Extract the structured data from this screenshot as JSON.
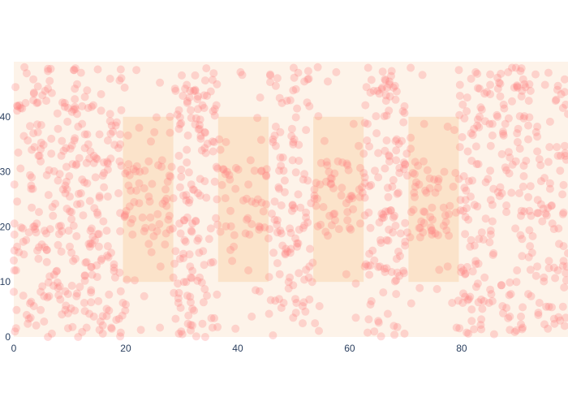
{
  "chart_data": {
    "type": "scatter",
    "title": "",
    "xlabel": "",
    "ylabel": "",
    "xlim": [
      0,
      99
    ],
    "ylim": [
      0,
      50
    ],
    "x_ticks": [
      0,
      20,
      40,
      60,
      80
    ],
    "y_ticks": [
      0,
      10,
      20,
      30,
      40
    ],
    "grid": false,
    "colors": {
      "plot_background": "#fdf3e9",
      "highlight_rect": "#fbe3ca",
      "marker": "#ff7f7f",
      "tick_text": "#2a3f5f"
    },
    "highlight_regions": [
      {
        "x0": 19.5,
        "x1": 28.5,
        "y0": 10,
        "y1": 40
      },
      {
        "x0": 36.5,
        "x1": 45.5,
        "y0": 10,
        "y1": 40
      },
      {
        "x0": 53.5,
        "x1": 62.5,
        "y0": 10,
        "y1": 40
      },
      {
        "x0": 70.5,
        "x1": 79.5,
        "y0": 10,
        "y1": 40
      }
    ],
    "point_count": 1300,
    "points": [
      [
        0.6,
        42
      ],
      [
        1.8,
        36.5
      ],
      [
        3.2,
        29
      ],
      [
        4.5,
        22.7
      ],
      [
        5.9,
        15.8
      ],
      [
        7.1,
        9.3
      ],
      [
        8.6,
        4.1
      ],
      [
        9.7,
        1.6
      ],
      [
        11.2,
        7.4
      ],
      [
        12.8,
        13.5
      ],
      [
        14.1,
        18.2
      ],
      [
        15.3,
        25.6
      ],
      [
        16.7,
        31.8
      ],
      [
        17.5,
        38.4
      ],
      [
        18.9,
        46.6
      ],
      [
        2.3,
        47.9
      ],
      [
        6.8,
        44.3
      ],
      [
        10.4,
        40.9
      ],
      [
        13.7,
        33.7
      ],
      [
        16.1,
        27.2
      ],
      [
        0.4,
        12.1
      ],
      [
        4.8,
        8.2
      ],
      [
        8.1,
        18.7
      ],
      [
        12.4,
        22.1
      ],
      [
        15.9,
        3.8
      ],
      [
        1.2,
        30.6
      ],
      [
        5.3,
        34.9
      ],
      [
        9.2,
        27.5
      ],
      [
        13.1,
        44.8
      ],
      [
        17.9,
        12.6
      ],
      [
        20.3,
        30.1
      ],
      [
        22.4,
        27.9
      ],
      [
        24.1,
        25.5
      ],
      [
        26.6,
        24.2
      ],
      [
        27.8,
        29.3
      ],
      [
        21.2,
        21.4
      ],
      [
        23.3,
        19.2
      ],
      [
        25.7,
        22.3
      ],
      [
        27.2,
        18.8
      ],
      [
        20.9,
        26.6
      ],
      [
        22.7,
        1.3
      ],
      [
        26.1,
        1.7
      ],
      [
        21.9,
        48.5
      ],
      [
        28.8,
        45.1
      ],
      [
        24.6,
        15.4
      ],
      [
        29.7,
        38.6
      ],
      [
        31.4,
        43.5
      ],
      [
        33.2,
        37.8
      ],
      [
        34.6,
        35.1
      ],
      [
        30.8,
        25.8
      ],
      [
        32.5,
        21.1
      ],
      [
        33.9,
        6.3
      ],
      [
        31.9,
        2.1
      ],
      [
        35.2,
        44.6
      ],
      [
        34.1,
        28.3
      ],
      [
        37.2,
        27.6
      ],
      [
        38.7,
        22.9
      ],
      [
        40.1,
        30.4
      ],
      [
        41.6,
        25.1
      ],
      [
        43.8,
        19.5
      ],
      [
        45.1,
        29.4
      ],
      [
        39.4,
        18.5
      ],
      [
        42.3,
        32.1
      ],
      [
        44.6,
        22.8
      ],
      [
        37.9,
        35.4
      ],
      [
        36.4,
        1.8
      ],
      [
        40.8,
        47.6
      ],
      [
        43.2,
        8.5
      ],
      [
        46.8,
        38.2
      ],
      [
        48.1,
        32.6
      ],
      [
        49.5,
        18.9
      ],
      [
        47.4,
        6.9
      ],
      [
        50.1,
        23.4
      ],
      [
        51.7,
        28.6
      ],
      [
        52.5,
        46.8
      ],
      [
        48.8,
        42.9
      ],
      [
        50.9,
        11.6
      ],
      [
        54.2,
        25.1
      ],
      [
        55.8,
        28.2
      ],
      [
        57.3,
        22.4
      ],
      [
        58.6,
        27.1
      ],
      [
        60.2,
        19.5
      ],
      [
        61.9,
        30.7
      ],
      [
        56.1,
        18.4
      ],
      [
        59.4,
        24.3
      ],
      [
        54.9,
        31.6
      ],
      [
        53.8,
        2.5
      ],
      [
        57.6,
        48.1
      ],
      [
        61.1,
        9.7
      ],
      [
        64.5,
        30.2
      ],
      [
        66.2,
        40.1
      ],
      [
        67.8,
        45.3
      ],
      [
        65.1,
        12.7
      ],
      [
        63.4,
        22.6
      ],
      [
        66.8,
        4.2
      ],
      [
        68.9,
        29.8
      ],
      [
        65.9,
        48.2
      ],
      [
        71.6,
        25.4
      ],
      [
        73.4,
        22.7
      ],
      [
        75.1,
        28.6
      ],
      [
        76.8,
        20.2
      ],
      [
        78.5,
        27.3
      ],
      [
        72.2,
        31.1
      ],
      [
        74.7,
        19.4
      ],
      [
        77.9,
        23.8
      ],
      [
        70.9,
        48.9
      ],
      [
        79.1,
        1.7
      ],
      [
        81.2,
        21.3
      ],
      [
        82.6,
        34.6
      ],
      [
        84.3,
        28.1
      ],
      [
        85.7,
        15.2
      ],
      [
        87.1,
        9.4
      ],
      [
        88.4,
        39.7
      ],
      [
        89.9,
        45.5
      ],
      [
        91.2,
        22.8
      ],
      [
        92.7,
        18.3
      ],
      [
        94.1,
        31.2
      ],
      [
        95.6,
        12.5
      ],
      [
        96.9,
        43.1
      ],
      [
        98.2,
        27.6
      ],
      [
        83.5,
        6.8
      ],
      [
        86.4,
        47.1
      ],
      [
        90.6,
        2.3
      ],
      [
        93.5,
        36.4
      ],
      [
        97.4,
        16.9
      ],
      [
        80.6,
        11.4
      ],
      [
        88.9,
        26.2
      ],
      [
        95.1,
        5.5
      ]
    ]
  }
}
